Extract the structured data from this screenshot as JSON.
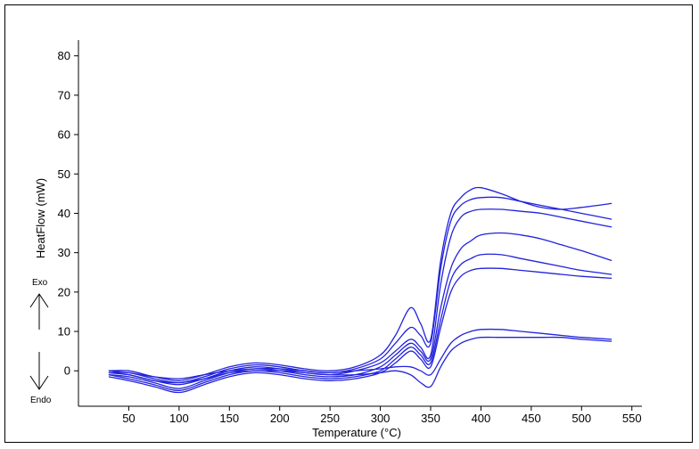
{
  "chart_data": {
    "type": "line",
    "title": "",
    "xlabel": "Temperature (°C)",
    "ylabel": "HeatFlow (mW)",
    "xlim": [
      0,
      560
    ],
    "ylim": [
      -9,
      84
    ],
    "xticks": [
      50,
      100,
      150,
      200,
      250,
      300,
      350,
      400,
      450,
      500,
      550
    ],
    "yticks": [
      0,
      10,
      20,
      30,
      40,
      50,
      60,
      70,
      80
    ],
    "grid": false,
    "legend": "none",
    "direction_labels": {
      "exo": "Exo",
      "endo": "Endo"
    },
    "line_color": "#2222dd",
    "series": [
      {
        "x": [
          30,
          50,
          75,
          100,
          125,
          150,
          175,
          200,
          225,
          250,
          275,
          300,
          315,
          330,
          340,
          350,
          360,
          370,
          380,
          390,
          400,
          420,
          440,
          460,
          480,
          500,
          530
        ],
        "y": [
          0,
          0,
          -1.5,
          -2.5,
          -1,
          1,
          2,
          1.5,
          0.5,
          0,
          1,
          4,
          9,
          16,
          12,
          8,
          28,
          40,
          44,
          46,
          46.5,
          45,
          43,
          41.5,
          41,
          41.5,
          42.5
        ]
      },
      {
        "x": [
          30,
          50,
          75,
          100,
          125,
          150,
          175,
          200,
          225,
          250,
          275,
          300,
          315,
          330,
          340,
          350,
          360,
          370,
          380,
          390,
          400,
          420,
          440,
          460,
          480,
          500,
          530
        ],
        "y": [
          -0.5,
          -0.5,
          -2,
          -3,
          -1.5,
          0.5,
          1.5,
          1,
          0,
          -0.5,
          0.5,
          3,
          7,
          11,
          9,
          7,
          26,
          38,
          42,
          43.5,
          44,
          44,
          43,
          42,
          41,
          40,
          38.5
        ]
      },
      {
        "x": [
          30,
          50,
          75,
          100,
          125,
          150,
          175,
          200,
          225,
          250,
          275,
          300,
          315,
          330,
          340,
          350,
          360,
          370,
          380,
          390,
          400,
          420,
          440,
          460,
          480,
          500,
          530
        ],
        "y": [
          -0.5,
          -1,
          -2.5,
          -3.5,
          -2,
          0,
          1,
          0.5,
          -0.5,
          -1,
          0,
          2,
          5,
          8,
          6,
          4,
          22,
          34,
          39,
          40.5,
          41,
          41,
          40.5,
          40,
          39,
          38,
          36.5
        ]
      },
      {
        "x": [
          30,
          50,
          75,
          100,
          125,
          150,
          175,
          200,
          225,
          250,
          275,
          300,
          315,
          330,
          340,
          350,
          360,
          370,
          380,
          390,
          400,
          420,
          440,
          460,
          480,
          500,
          530
        ],
        "y": [
          -1,
          -1.5,
          -3,
          -4.5,
          -2.5,
          -0.5,
          0.5,
          0,
          -1,
          -1.5,
          -1,
          1,
          4,
          7,
          5,
          3,
          16,
          26,
          31,
          33,
          34.5,
          35,
          34.5,
          33.5,
          32,
          30.5,
          28
        ]
      },
      {
        "x": [
          30,
          50,
          75,
          100,
          125,
          150,
          175,
          200,
          225,
          250,
          275,
          300,
          315,
          330,
          340,
          350,
          360,
          370,
          380,
          390,
          400,
          420,
          440,
          460,
          480,
          500,
          530
        ],
        "y": [
          -1,
          -2,
          -3.5,
          -5,
          -3,
          -1,
          0,
          -0.5,
          -1.5,
          -2,
          -1.5,
          0,
          3,
          6,
          4,
          2,
          13,
          23,
          27,
          28.5,
          29.5,
          29.5,
          28.5,
          27.5,
          26.5,
          25.5,
          24.5
        ]
      },
      {
        "x": [
          30,
          50,
          75,
          100,
          125,
          150,
          175,
          200,
          225,
          250,
          275,
          300,
          315,
          330,
          340,
          350,
          360,
          370,
          380,
          390,
          400,
          420,
          440,
          460,
          480,
          500,
          530
        ],
        "y": [
          -1.5,
          -2.5,
          -4,
          -5.5,
          -3.5,
          -1.5,
          -0.5,
          -1,
          -2,
          -2.5,
          -2,
          -0.5,
          2,
          5,
          3,
          1,
          11,
          20,
          24,
          25.5,
          26,
          26,
          25.5,
          25,
          24.5,
          24,
          23.5
        ]
      },
      {
        "x": [
          30,
          50,
          75,
          100,
          125,
          150,
          175,
          200,
          225,
          250,
          275,
          300,
          315,
          330,
          340,
          350,
          360,
          370,
          380,
          390,
          400,
          420,
          440,
          460,
          480,
          500,
          530
        ],
        "y": [
          0,
          -0.5,
          -1.5,
          -2,
          -1,
          0,
          0.5,
          0.5,
          0,
          -0.5,
          0,
          0.5,
          1,
          1,
          0,
          -1,
          3,
          7,
          9,
          10,
          10.5,
          10.5,
          10,
          9.5,
          9,
          8.5,
          8
        ]
      },
      {
        "x": [
          30,
          50,
          75,
          100,
          125,
          150,
          175,
          200,
          225,
          250,
          275,
          300,
          315,
          330,
          340,
          350,
          360,
          370,
          380,
          390,
          400,
          420,
          440,
          460,
          480,
          500,
          530
        ],
        "y": [
          -0.5,
          -1,
          -2.5,
          -3,
          -2,
          -0.5,
          0,
          0,
          -0.5,
          -1,
          -1,
          -0.5,
          0,
          -1,
          -3,
          -4,
          1,
          5,
          7,
          8,
          8.5,
          8.5,
          8.5,
          8.5,
          8.5,
          8,
          7.5
        ]
      }
    ]
  }
}
